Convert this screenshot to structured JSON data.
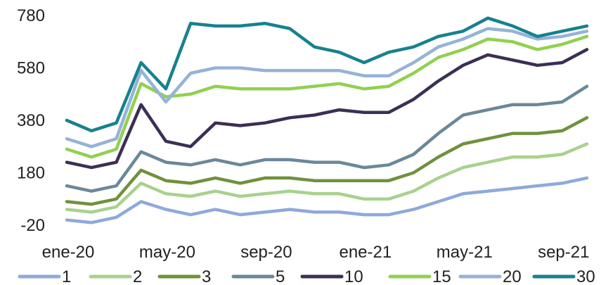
{
  "chart_data": {
    "type": "line",
    "title": "",
    "xlabel": "",
    "ylabel": "",
    "ylim": [
      -20,
      780
    ],
    "y_ticks": [
      "780",
      "580",
      "380",
      "180",
      "-20"
    ],
    "x_ticks": [
      "ene-20",
      "may-20",
      "sep-20",
      "ene-21",
      "may-21",
      "sep-21"
    ],
    "x": [
      "ene-20",
      "feb-20",
      "mar-20",
      "abr-20",
      "may-20",
      "jun-20",
      "jul-20",
      "ago-20",
      "sep-20",
      "oct-20",
      "nov-20",
      "dic-20",
      "ene-21",
      "feb-21",
      "mar-21",
      "abr-21",
      "may-21",
      "jun-21",
      "jul-21",
      "ago-21",
      "sep-21",
      "oct-21"
    ],
    "grid": false,
    "legend_position": "bottom",
    "series": [
      {
        "name": "1",
        "color": "#8EA9DB",
        "values": [
          0,
          -10,
          10,
          70,
          40,
          20,
          40,
          20,
          30,
          40,
          30,
          30,
          20,
          20,
          40,
          70,
          100,
          110,
          120,
          130,
          140,
          160
        ]
      },
      {
        "name": "2",
        "color": "#A9D18E",
        "values": [
          40,
          30,
          50,
          140,
          100,
          90,
          110,
          90,
          100,
          110,
          100,
          100,
          80,
          80,
          110,
          160,
          200,
          220,
          240,
          240,
          250,
          290
        ]
      },
      {
        "name": "3",
        "color": "#70913C",
        "values": [
          70,
          60,
          80,
          190,
          150,
          140,
          160,
          140,
          160,
          160,
          150,
          150,
          150,
          150,
          180,
          240,
          290,
          310,
          330,
          330,
          340,
          390
        ]
      },
      {
        "name": "5",
        "color": "#6B8899",
        "values": [
          130,
          110,
          130,
          260,
          220,
          210,
          230,
          210,
          230,
          230,
          220,
          220,
          200,
          210,
          250,
          330,
          400,
          420,
          440,
          440,
          450,
          510
        ]
      },
      {
        "name": "10",
        "color": "#3B2F55",
        "values": [
          220,
          200,
          220,
          440,
          300,
          280,
          370,
          360,
          370,
          390,
          400,
          420,
          410,
          410,
          460,
          530,
          590,
          630,
          610,
          590,
          600,
          650
        ]
      },
      {
        "name": "15",
        "color": "#92D050",
        "values": [
          270,
          240,
          270,
          520,
          470,
          480,
          510,
          500,
          500,
          500,
          510,
          520,
          500,
          510,
          560,
          620,
          650,
          690,
          680,
          650,
          670,
          700
        ]
      },
      {
        "name": "20",
        "color": "#95B3D7",
        "values": [
          310,
          280,
          310,
          570,
          450,
          560,
          580,
          580,
          570,
          570,
          570,
          570,
          550,
          550,
          600,
          660,
          690,
          730,
          720,
          690,
          700,
          720
        ]
      },
      {
        "name": "30",
        "color": "#17818F",
        "values": [
          380,
          340,
          370,
          600,
          500,
          750,
          740,
          740,
          750,
          730,
          660,
          640,
          600,
          640,
          660,
          700,
          720,
          770,
          740,
          700,
          720,
          740
        ]
      }
    ]
  }
}
